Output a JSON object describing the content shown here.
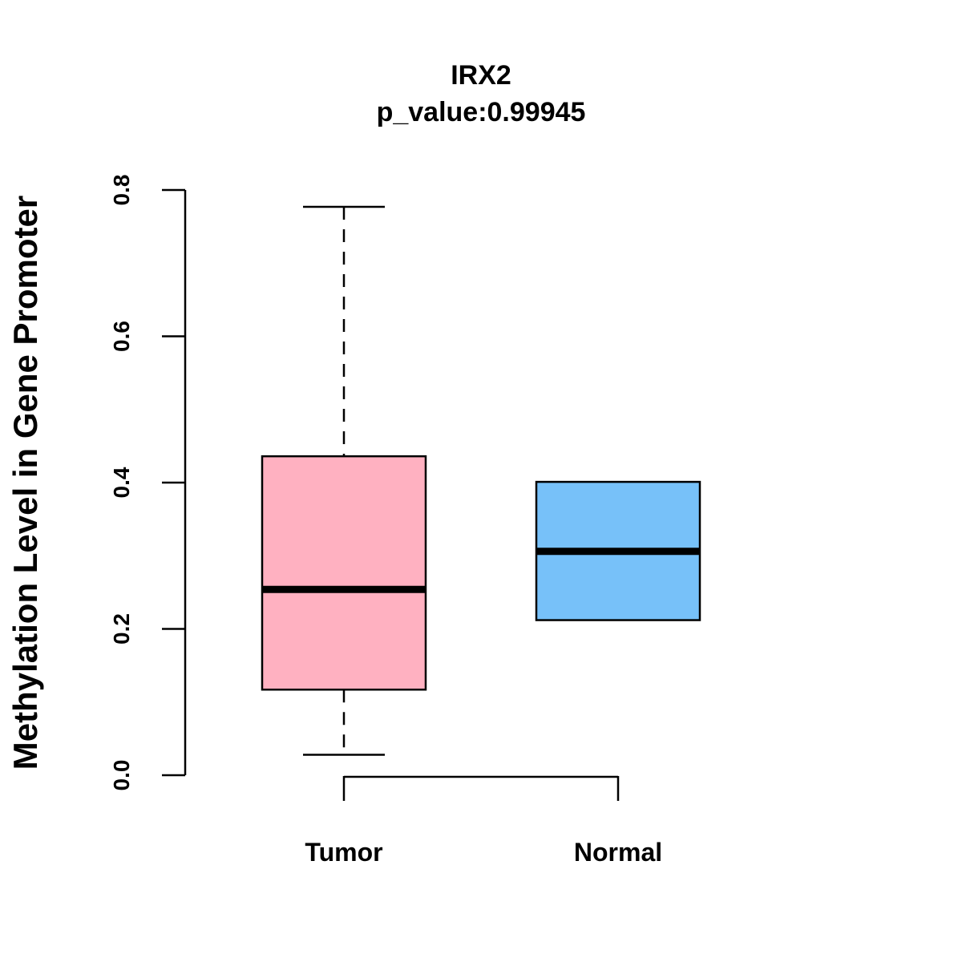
{
  "chart_data": {
    "type": "boxplot",
    "title": "IRX2",
    "subtitle": "p_value:0.99945",
    "xlabel": "",
    "ylabel": "Methylation Level in Gene Promoter",
    "ylim": [
      0.0,
      0.8
    ],
    "yticks": [
      0.0,
      0.2,
      0.4,
      0.6,
      0.8
    ],
    "ytick_labels": [
      "0.0",
      "0.2",
      "0.4",
      "0.6",
      "0.8"
    ],
    "categories": [
      "Tumor",
      "Normal"
    ],
    "series": [
      {
        "name": "Tumor",
        "whisker_low": 0.028,
        "q1": 0.117,
        "median": 0.254,
        "q3": 0.436,
        "whisker_high": 0.777,
        "color": "#FFB1C1"
      },
      {
        "name": "Normal",
        "whisker_low": 0.212,
        "q1": 0.212,
        "median": 0.306,
        "q3": 0.401,
        "whisker_high": 0.401,
        "color": "#77C1F9"
      }
    ]
  }
}
